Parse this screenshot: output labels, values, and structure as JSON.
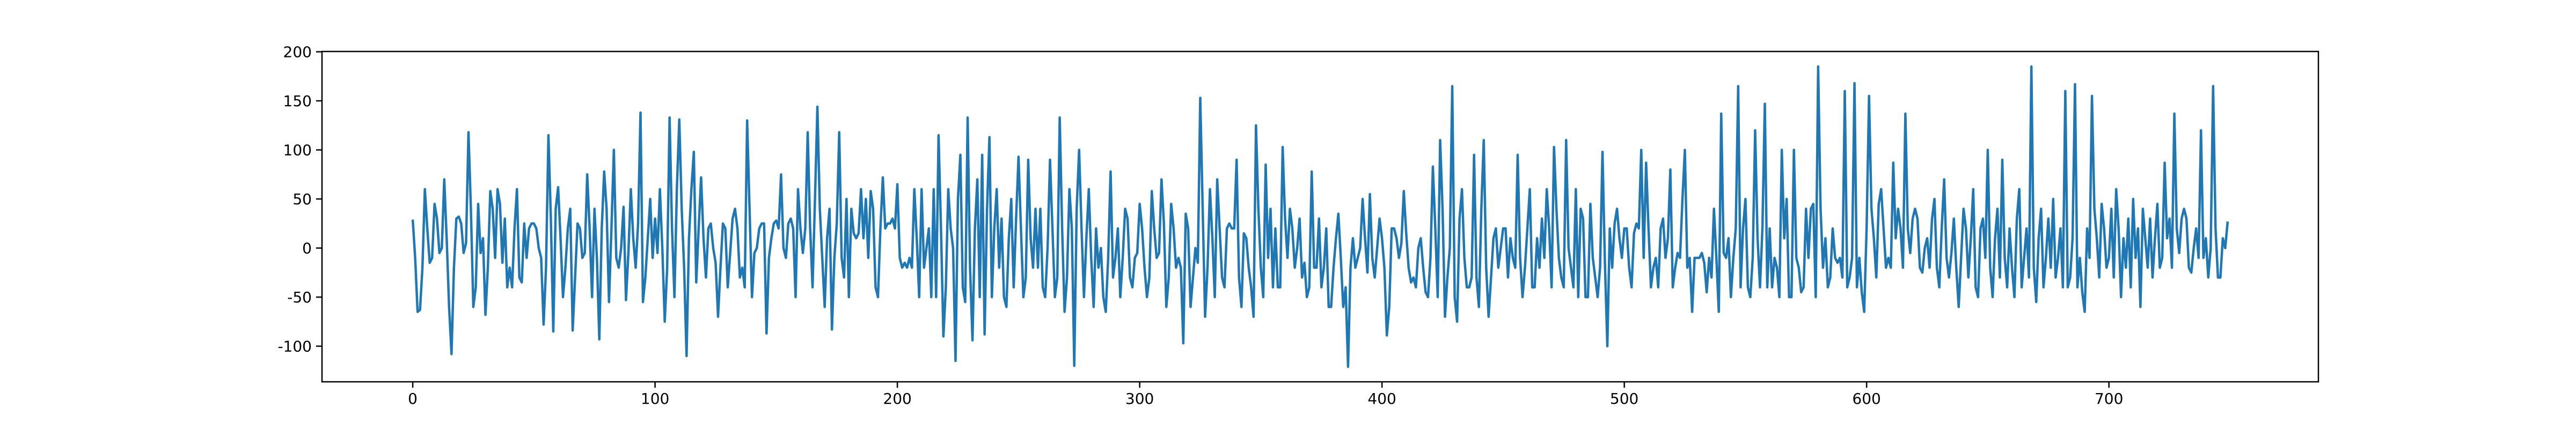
{
  "chart_data": {
    "type": "line",
    "xlim": [
      -37.45,
      786.45
    ],
    "xticks": [
      0,
      100,
      200,
      300,
      400,
      500,
      600,
      700
    ],
    "ylim": [
      -136.3,
      200.3
    ],
    "yticks": [
      -100,
      -50,
      0,
      50,
      100,
      150,
      200
    ],
    "series": [
      {
        "color": "#1f77b4",
        "values": [
          29,
          -10,
          -65,
          -63,
          -20,
          60,
          20,
          -15,
          -10,
          45,
          30,
          -5,
          0,
          70,
          10,
          -60,
          -108,
          -20,
          30,
          32,
          25,
          -5,
          5,
          118,
          40,
          -60,
          -40,
          45,
          -5,
          10,
          -68,
          -20,
          58,
          40,
          -10,
          60,
          45,
          -15,
          30,
          -40,
          -20,
          -40,
          20,
          60,
          -30,
          -35,
          25,
          -10,
          20,
          25,
          25,
          20,
          0,
          -10,
          -78,
          -20,
          115,
          30,
          -85,
          40,
          62,
          10,
          -50,
          -20,
          20,
          40,
          -84,
          -30,
          25,
          20,
          -10,
          -5,
          75,
          20,
          -50,
          40,
          -10,
          -93,
          20,
          78,
          40,
          -55,
          20,
          100,
          -10,
          -20,
          0,
          42,
          -53,
          -5,
          60,
          10,
          -20,
          25,
          138,
          -55,
          -30,
          10,
          50,
          -10,
          30,
          -5,
          60,
          0,
          -75,
          -20,
          133,
          20,
          -50,
          60,
          131,
          40,
          -20,
          -110,
          10,
          60,
          98,
          -35,
          20,
          72,
          10,
          -30,
          20,
          25,
          0,
          -15,
          -70,
          -20,
          25,
          20,
          -40,
          -5,
          30,
          40,
          20,
          -30,
          -20,
          -40,
          130,
          40,
          -50,
          -5,
          0,
          20,
          25,
          25,
          -87,
          -10,
          10,
          25,
          28,
          20,
          75,
          0,
          -10,
          25,
          30,
          20,
          -50,
          60,
          20,
          -5,
          20,
          118,
          20,
          -40,
          50,
          144,
          40,
          -10,
          -60,
          10,
          40,
          -83,
          -10,
          25,
          118,
          -10,
          -30,
          50,
          -50,
          40,
          15,
          10,
          15,
          60,
          10,
          50,
          -10,
          58,
          40,
          -40,
          -50,
          20,
          72,
          20,
          25,
          25,
          30,
          20,
          65,
          -10,
          -20,
          -15,
          -20,
          -10,
          -20,
          60,
          10,
          -50,
          60,
          -20,
          0,
          20,
          -50,
          60,
          -50,
          115,
          20,
          -90,
          -40,
          60,
          20,
          0,
          -115,
          50,
          95,
          -40,
          -55,
          133,
          -20,
          -94,
          20,
          70,
          -50,
          95,
          -88,
          40,
          113,
          -50,
          20,
          60,
          -20,
          30,
          -50,
          -60,
          10,
          50,
          -40,
          30,
          93,
          20,
          -50,
          -30,
          90,
          10,
          -20,
          40,
          -20,
          40,
          -40,
          -50,
          0,
          90,
          20,
          -50,
          -30,
          133,
          20,
          -65,
          -30,
          60,
          20,
          -120,
          40,
          100,
          20,
          -50,
          10,
          60,
          -10,
          -60,
          20,
          -20,
          0,
          -50,
          -65,
          -10,
          78,
          -30,
          -10,
          20,
          -50,
          -10,
          40,
          30,
          -30,
          -40,
          -10,
          -5,
          45,
          20,
          -20,
          -50,
          -30,
          58,
          20,
          -10,
          -5,
          70,
          25,
          -60,
          -30,
          45,
          20,
          -20,
          -10,
          -20,
          -97,
          35,
          20,
          -60,
          -30,
          0,
          -15,
          153,
          40,
          -70,
          -20,
          60,
          10,
          -50,
          70,
          20,
          -30,
          -40,
          20,
          25,
          20,
          20,
          90,
          -30,
          -60,
          15,
          10,
          -20,
          -40,
          -70,
          125,
          40,
          -20,
          -50,
          85,
          -10,
          40,
          -40,
          20,
          -40,
          -40,
          103,
          30,
          -10,
          40,
          20,
          -20,
          0,
          30,
          -30,
          -15,
          -50,
          -40,
          78,
          -20,
          -20,
          30,
          -40,
          -20,
          20,
          -60,
          -60,
          -20,
          10,
          35,
          -10,
          -60,
          -40,
          -121,
          -20,
          10,
          -20,
          -10,
          0,
          50,
          10,
          -25,
          55,
          -10,
          -30,
          0,
          30,
          10,
          -20,
          -89,
          -60,
          20,
          20,
          10,
          -10,
          5,
          58,
          15,
          -20,
          -35,
          -30,
          -40,
          0,
          10,
          -20,
          -45,
          -50,
          -10,
          83,
          20,
          -50,
          110,
          40,
          -70,
          -30,
          0,
          165,
          -50,
          -75,
          30,
          60,
          -10,
          -40,
          -40,
          -30,
          95,
          -30,
          -60,
          40,
          110,
          -20,
          -70,
          -30,
          10,
          20,
          -20,
          0,
          20,
          20,
          -30,
          10,
          -10,
          -20,
          95,
          -10,
          -50,
          -20,
          20,
          60,
          -40,
          -40,
          10,
          -20,
          30,
          -10,
          60,
          20,
          -40,
          103,
          40,
          -10,
          -30,
          -40,
          110,
          0,
          -20,
          -40,
          60,
          -50,
          40,
          30,
          -50,
          -50,
          45,
          -10,
          -30,
          -50,
          -20,
          98,
          -15,
          -100,
          20,
          -20,
          25,
          40,
          10,
          -10,
          20,
          20,
          -20,
          -40,
          15,
          25,
          20,
          100,
          -10,
          87,
          20,
          -40,
          -20,
          -10,
          -40,
          20,
          30,
          -10,
          10,
          80,
          -40,
          -20,
          -5,
          -10,
          50,
          100,
          -20,
          -10,
          -65,
          -10,
          -10,
          -10,
          -5,
          -15,
          -45,
          -10,
          -30,
          40,
          -10,
          -65,
          137,
          -5,
          -10,
          10,
          -50,
          -10,
          20,
          165,
          -40,
          20,
          50,
          -40,
          -50,
          -10,
          120,
          10,
          -40,
          20,
          147,
          -40,
          20,
          -40,
          -10,
          -20,
          -50,
          100,
          10,
          50,
          -50,
          -50,
          100,
          -10,
          -20,
          -45,
          -40,
          40,
          -10,
          40,
          45,
          -50,
          185,
          40,
          -20,
          10,
          -40,
          -30,
          20,
          -10,
          -15,
          -10,
          -30,
          160,
          -40,
          -30,
          -10,
          168,
          -40,
          -10,
          -45,
          -65,
          20,
          155,
          40,
          10,
          -30,
          45,
          60,
          20,
          -20,
          -10,
          -20,
          87,
          10,
          40,
          20,
          -20,
          137,
          20,
          -5,
          30,
          40,
          30,
          -20,
          -25,
          0,
          10,
          -20,
          30,
          50,
          -20,
          -40,
          20,
          70,
          -10,
          -30,
          -5,
          30,
          -20,
          -60,
          -10,
          40,
          20,
          -30,
          10,
          60,
          -40,
          -50,
          20,
          30,
          -10,
          100,
          -20,
          -50,
          10,
          40,
          -30,
          90,
          -10,
          -40,
          20,
          -20,
          -50,
          30,
          60,
          -40,
          -10,
          20,
          -30,
          185,
          -20,
          -55,
          10,
          40,
          -40,
          -10,
          30,
          -20,
          50,
          -30,
          -10,
          20,
          -40,
          160,
          -40,
          -30,
          10,
          167,
          -40,
          -10,
          -45,
          -65,
          20,
          -10,
          155,
          40,
          10,
          -30,
          45,
          20,
          -20,
          -10,
          40,
          -30,
          60,
          20,
          -50,
          10,
          -20,
          30,
          -40,
          50,
          -10,
          20,
          -60,
          40,
          10,
          -20,
          30,
          -30,
          10,
          45,
          -20,
          -10,
          87,
          10,
          30,
          -20,
          137,
          20,
          -5,
          30,
          40,
          30,
          -20,
          -25,
          0,
          20,
          -10,
          120,
          -10,
          10,
          -30,
          0,
          165,
          20,
          -30,
          -30,
          10,
          0,
          27
        ]
      }
    ]
  }
}
